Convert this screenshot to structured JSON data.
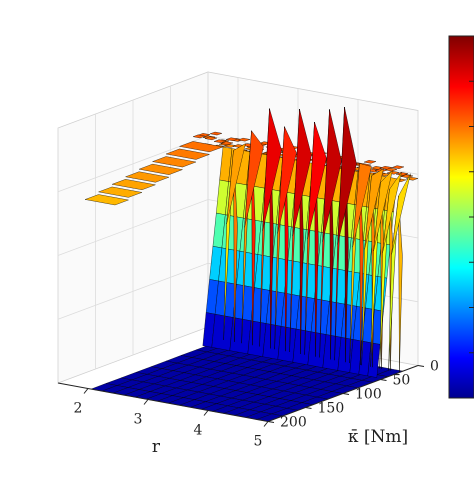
{
  "chart_data": {
    "type": "surface",
    "title": "",
    "colormap": "jet",
    "colormap_colors": [
      "#00008f",
      "#0000ff",
      "#00ffff",
      "#ffff00",
      "#ff0000",
      "#800000"
    ],
    "xlabel": "r",
    "ylabel": "κ̄ [Nm]",
    "x_axis": {
      "ticks": [
        2,
        3,
        4,
        5
      ],
      "tick_labels": [
        "2",
        "3",
        "4",
        "5"
      ],
      "range": [
        1.5,
        5
      ]
    },
    "y_axis": {
      "ticks": [
        0,
        50,
        100,
        150,
        200
      ],
      "tick_labels": [
        "0",
        "50",
        "100",
        "150",
        "200"
      ],
      "range": [
        0,
        200
      ]
    },
    "grid": true,
    "floor_value": 0.0,
    "plateau_value": 0.75,
    "spikes": [
      {
        "r": 2.15,
        "peak": 0.74
      },
      {
        "r": 2.45,
        "peak": 0.83
      },
      {
        "r": 2.75,
        "peak": 0.93
      },
      {
        "r": 3.0,
        "peak": 0.87
      },
      {
        "r": 3.25,
        "peak": 0.95
      },
      {
        "r": 3.5,
        "peak": 0.91
      },
      {
        "r": 3.75,
        "peak": 0.97
      },
      {
        "r": 4.0,
        "peak": 0.99
      },
      {
        "r": 4.25,
        "peak": 0.78
      },
      {
        "r": 4.45,
        "peak": 0.74
      },
      {
        "r": 4.6,
        "peak": 0.72
      },
      {
        "r": 4.75,
        "peak": 0.7
      },
      {
        "r": 4.9,
        "peak": 0.68
      }
    ]
  }
}
